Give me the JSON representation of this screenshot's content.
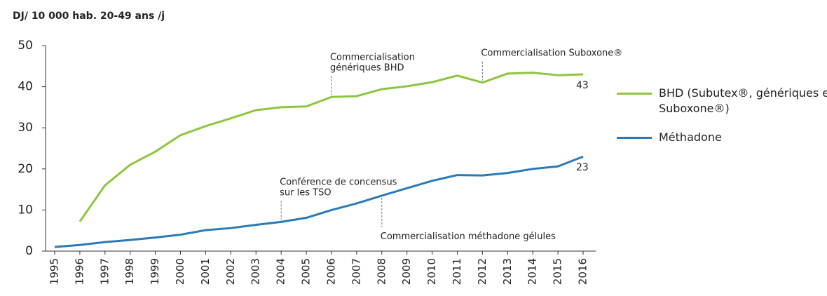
{
  "chart_data": {
    "type": "line",
    "title": "DJ/ 10 000 hab. 20-49 ans /j",
    "x": [
      1995,
      1996,
      1997,
      1998,
      1999,
      2000,
      2001,
      2002,
      2003,
      2004,
      2005,
      2006,
      2007,
      2008,
      2009,
      2010,
      2011,
      2012,
      2013,
      2014,
      2015,
      2016
    ],
    "xlim": [
      1995,
      2016
    ],
    "series": [
      {
        "name": "BHD (Subutex®, génériques et  Suboxone®)",
        "color": "#8cc63f",
        "values": [
          null,
          7.2,
          16,
          21,
          24.2,
          28.2,
          30.4,
          32.3,
          34.3,
          35,
          35.2,
          37.5,
          37.7,
          39.4,
          40.1,
          41.1,
          42.7,
          41,
          43.2,
          43.4,
          42.8,
          43
        ],
        "value_labels": [
          null,
          null,
          null,
          null,
          null,
          null,
          null,
          null,
          null,
          null,
          null,
          null,
          null,
          null,
          null,
          null,
          null,
          null,
          null,
          null,
          null,
          "43"
        ]
      },
      {
        "name": "Méthadone",
        "color": "#2a7ab8",
        "values": [
          1,
          1.5,
          2.2,
          2.7,
          3.3,
          4,
          5.1,
          5.6,
          6.4,
          7.1,
          8.1,
          10,
          11.6,
          13.5,
          15.3,
          17.1,
          18.5,
          18.4,
          19,
          20,
          20.6,
          23
        ],
        "value_labels": [
          null,
          null,
          null,
          null,
          null,
          null,
          null,
          null,
          null,
          null,
          null,
          null,
          null,
          null,
          null,
          null,
          null,
          null,
          null,
          null,
          null,
          "23"
        ]
      }
    ],
    "ylim": [
      0,
      50
    ],
    "yticks": [
      0,
      10,
      20,
      30,
      40,
      50
    ],
    "annotations": [
      {
        "lines": [
          "Commercialisation",
          "génériques BHD"
        ],
        "x": 2006,
        "series": 0,
        "side": "above"
      },
      {
        "lines": [
          "Commercialisation Suboxone®"
        ],
        "x": 2012,
        "series": 0,
        "side": "above"
      },
      {
        "lines": [
          "Conférence de concensus",
          "sur les TSO"
        ],
        "x": 2004,
        "series": 1,
        "side": "above"
      },
      {
        "lines": [
          "Commercialisation méthadone gélules"
        ],
        "x": 2008,
        "series": 1,
        "side": "below"
      }
    ],
    "legend": "right"
  }
}
